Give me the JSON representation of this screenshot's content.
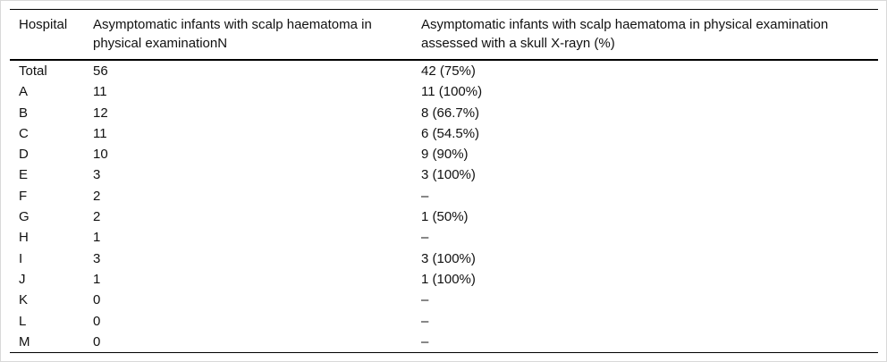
{
  "table": {
    "columns": [
      "Hospital",
      "Asymptomatic infants with scalp haematoma in physical examinationN",
      "Asymptomatic infants with scalp haematoma in physical examination assessed with a skull X-rayn (%)"
    ],
    "rows": [
      {
        "hospital": "Total",
        "n": "56",
        "xray": "42 (75%)"
      },
      {
        "hospital": "A",
        "n": "11",
        "xray": "11 (100%)"
      },
      {
        "hospital": "B",
        "n": "12",
        "xray": "8 (66.7%)"
      },
      {
        "hospital": "C",
        "n": "11",
        "xray": "6 (54.5%)"
      },
      {
        "hospital": "D",
        "n": "10",
        "xray": "9 (90%)"
      },
      {
        "hospital": "E",
        "n": "3",
        "xray": "3 (100%)"
      },
      {
        "hospital": "F",
        "n": "2",
        "xray": "–"
      },
      {
        "hospital": "G",
        "n": "2",
        "xray": "1 (50%)"
      },
      {
        "hospital": "H",
        "n": "1",
        "xray": "–"
      },
      {
        "hospital": "I",
        "n": "3",
        "xray": "3 (100%)"
      },
      {
        "hospital": "J",
        "n": "1",
        "xray": "1 (100%)"
      },
      {
        "hospital": "K",
        "n": "0",
        "xray": "–"
      },
      {
        "hospital": "L",
        "n": "0",
        "xray": "–"
      },
      {
        "hospital": "M",
        "n": "0",
        "xray": "–"
      }
    ],
    "missing_value_marker": "–",
    "colors": {
      "text": "#111111",
      "rule": "#000000",
      "background": "#ffffff",
      "frame_border": "#d9d9d9"
    }
  }
}
